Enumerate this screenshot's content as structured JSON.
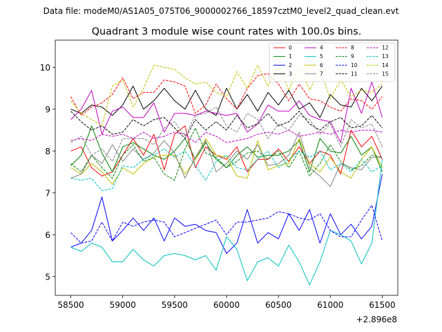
{
  "chart_data": {
    "type": "line",
    "suptitle": "Data file: modeM0/AS1A05_075T06_9000002766_18597cztM0_level2_quad_clean.evt",
    "title": "Quadrant 3 module wise count rates with 100.0s bins.",
    "xlabel": "",
    "ylabel": "",
    "x_offset_label": "+2.896e8",
    "xlim": [
      58350,
      61650
    ],
    "ylim": [
      4.55,
      10.65
    ],
    "xticks": [
      58500,
      59000,
      59500,
      60000,
      60500,
      61000,
      61500
    ],
    "xtick_labels": [
      "58500",
      "59000",
      "59500",
      "60000",
      "60500",
      "61000",
      "61500"
    ],
    "yticks": [
      5,
      6,
      7,
      8,
      9,
      10
    ],
    "ytick_labels": [
      "5",
      "6",
      "7",
      "8",
      "9",
      "10"
    ],
    "grid": false,
    "legend_position": "top-right",
    "x": [
      58500,
      58600,
      58700,
      58800,
      58900,
      59000,
      59100,
      59200,
      59300,
      59400,
      59500,
      59600,
      59700,
      59800,
      59900,
      60000,
      60100,
      60200,
      60300,
      60400,
      60500,
      60600,
      60700,
      60800,
      60900,
      61000,
      61100,
      61200,
      61300,
      61400,
      61500
    ],
    "series": [
      {
        "name": "0",
        "color": "#ff0000",
        "dash": "solid",
        "values": [
          8.0,
          8.1,
          7.6,
          7.4,
          7.5,
          7.9,
          8.3,
          7.9,
          8.4,
          7.55,
          8.4,
          8.6,
          7.6,
          8.1,
          7.9,
          7.8,
          8.1,
          7.5,
          7.8,
          7.8,
          8.05,
          7.75,
          8.1,
          7.7,
          8.0,
          7.9,
          7.45,
          8.5,
          8.1,
          8.35,
          7.8
        ]
      },
      {
        "name": "1",
        "color": "#008000",
        "dash": "solid",
        "values": [
          7.65,
          7.9,
          8.6,
          7.95,
          7.5,
          8.1,
          8.2,
          8.05,
          7.9,
          7.8,
          8.0,
          8.3,
          7.8,
          8.2,
          7.8,
          7.6,
          7.9,
          8.1,
          7.85,
          7.9,
          7.9,
          8.0,
          8.25,
          7.5,
          8.3,
          8.0,
          7.95,
          8.35,
          7.9,
          8.1,
          7.5
        ]
      },
      {
        "name": "2",
        "color": "#0000ff",
        "dash": "solid",
        "values": [
          5.7,
          5.8,
          6.1,
          6.9,
          5.85,
          6.1,
          6.4,
          6.1,
          6.4,
          5.85,
          6.4,
          6.2,
          6.25,
          6.1,
          6.05,
          5.55,
          5.8,
          6.6,
          5.8,
          6.05,
          5.9,
          6.5,
          6.1,
          6.6,
          5.8,
          6.5,
          6.0,
          6.25,
          5.9,
          6.2,
          7.45
        ]
      },
      {
        "name": "3",
        "color": "#000000",
        "dash": "solid",
        "values": [
          9.0,
          8.9,
          9.1,
          9.05,
          8.85,
          9.1,
          9.55,
          9.0,
          9.2,
          9.5,
          9.2,
          9.0,
          9.45,
          9.0,
          8.85,
          9.5,
          9.0,
          9.35,
          8.95,
          9.4,
          9.1,
          9.45,
          9.0,
          9.15,
          8.8,
          9.35,
          9.1,
          9.05,
          9.5,
          9.2,
          9.55
        ]
      },
      {
        "name": "4",
        "color": "#bf00bf",
        "dash": "solid",
        "values": [
          8.75,
          9.0,
          9.45,
          8.4,
          8.95,
          9.05,
          8.8,
          8.8,
          9.15,
          8.45,
          8.9,
          8.9,
          8.85,
          8.95,
          8.9,
          8.85,
          8.9,
          8.45,
          8.65,
          9.1,
          8.95,
          8.95,
          9.2,
          8.85,
          8.75,
          8.7,
          8.2,
          9.5,
          8.9,
          9.65,
          8.8
        ]
      },
      {
        "name": "5",
        "color": "#00bfbf",
        "dash": "solid",
        "values": [
          5.7,
          5.6,
          5.8,
          5.7,
          5.35,
          5.35,
          5.65,
          5.4,
          5.25,
          5.5,
          5.55,
          5.5,
          5.4,
          5.5,
          5.15,
          5.95,
          5.65,
          4.9,
          5.35,
          5.45,
          5.25,
          5.75,
          5.35,
          4.8,
          5.35,
          6.1,
          6.0,
          5.85,
          5.3,
          5.8,
          7.8
        ]
      },
      {
        "name": "6",
        "color": "#bfbf00",
        "dash": "solid",
        "values": [
          7.6,
          7.45,
          7.7,
          7.5,
          7.2,
          7.6,
          7.45,
          7.7,
          7.85,
          7.9,
          7.9,
          7.45,
          7.8,
          8.3,
          7.9,
          7.85,
          7.4,
          7.35,
          8.25,
          7.55,
          7.65,
          7.7,
          8.3,
          7.7,
          7.5,
          7.85,
          7.5,
          7.35,
          7.8,
          8.1,
          7.6
        ]
      },
      {
        "name": "7",
        "color": "#808080",
        "dash": "solid",
        "values": [
          7.35,
          7.45,
          7.9,
          7.7,
          8.15,
          7.75,
          8.05,
          7.8,
          7.95,
          8.25,
          7.95,
          7.35,
          7.85,
          8.25,
          7.5,
          7.7,
          8.0,
          7.8,
          8.15,
          7.65,
          7.7,
          7.9,
          8.45,
          7.6,
          7.4,
          7.15,
          7.7,
          7.6,
          7.55,
          7.85,
          7.85
        ]
      },
      {
        "name": "8",
        "color": "#ff0000",
        "dash": "dashed",
        "values": [
          9.3,
          8.85,
          9.05,
          9.15,
          9.35,
          9.75,
          9.25,
          9.4,
          9.4,
          9.7,
          9.65,
          9.55,
          8.9,
          9.1,
          9.6,
          9.25,
          9.0,
          9.5,
          9.8,
          9.85,
          9.6,
          9.2,
          9.6,
          9.25,
          9.2,
          9.05,
          8.95,
          9.25,
          9.2,
          9.0,
          9.3
        ]
      },
      {
        "name": "9",
        "color": "#008000",
        "dash": "dashed",
        "values": [
          7.7,
          7.5,
          7.9,
          7.6,
          7.35,
          7.9,
          8.15,
          7.75,
          7.85,
          7.45,
          7.3,
          8.05,
          8.55,
          7.95,
          7.85,
          7.6,
          7.75,
          7.95,
          8.0,
          7.8,
          8.0,
          7.6,
          8.0,
          7.4,
          7.7,
          8.15,
          7.75,
          7.55,
          7.65,
          7.9,
          7.85
        ]
      },
      {
        "name": "10",
        "color": "#0000ff",
        "dash": "dashed",
        "values": [
          6.05,
          5.8,
          5.85,
          6.3,
          5.85,
          6.3,
          6.2,
          6.3,
          6.35,
          6.3,
          5.95,
          6.05,
          6.15,
          6.25,
          6.35,
          6.0,
          6.3,
          6.3,
          6.35,
          6.4,
          6.55,
          6.5,
          6.4,
          6.35,
          6.5,
          6.1,
          5.95,
          5.95,
          6.35,
          6.7,
          5.85
        ]
      },
      {
        "name": "11",
        "color": "#000000",
        "dash": "dashed",
        "values": [
          8.95,
          8.7,
          8.5,
          8.6,
          8.4,
          8.45,
          8.75,
          8.6,
          8.75,
          8.8,
          8.55,
          8.3,
          8.75,
          8.5,
          8.7,
          8.5,
          8.85,
          8.55,
          8.65,
          8.9,
          8.6,
          8.7,
          8.95,
          8.65,
          8.5,
          8.7,
          8.8,
          8.55,
          8.6,
          8.85,
          8.55
        ]
      },
      {
        "name": "12",
        "color": "#bf00bf",
        "dash": "dashed",
        "values": [
          8.25,
          8.3,
          8.25,
          8.4,
          8.35,
          8.4,
          8.3,
          8.45,
          8.3,
          8.35,
          8.45,
          8.4,
          8.2,
          8.45,
          8.35,
          8.2,
          8.25,
          8.3,
          8.4,
          8.45,
          8.4,
          8.5,
          8.35,
          8.4,
          8.45,
          8.4,
          8.5,
          8.45,
          8.5,
          8.5,
          8.45
        ]
      },
      {
        "name": "13",
        "color": "#00bfbf",
        "dash": "dashed",
        "values": [
          7.35,
          7.3,
          7.35,
          7.05,
          7.1,
          7.65,
          7.6,
          7.8,
          7.9,
          8.05,
          7.85,
          8.0,
          7.65,
          7.3,
          7.75,
          7.9,
          7.6,
          7.55,
          7.8,
          8.0,
          7.6,
          7.8,
          8.0,
          7.85,
          8.0,
          7.55,
          7.7,
          7.5,
          7.8,
          7.5,
          7.65
        ]
      },
      {
        "name": "14",
        "color": "#bfbf00",
        "dash": "dashed",
        "values": [
          9.2,
          8.9,
          8.75,
          8.6,
          9.55,
          9.7,
          9.05,
          9.5,
          10.05,
          10.0,
          9.95,
          9.75,
          9.6,
          9.65,
          9.4,
          9.3,
          9.9,
          9.5,
          10.05,
          9.55,
          10.05,
          9.45,
          10.05,
          9.45,
          9.95,
          9.25,
          9.7,
          9.3,
          9.45,
          9.4,
          9.6
        ]
      },
      {
        "name": "15",
        "color": "#808080",
        "dash": "dashed",
        "values": [
          8.2,
          8.35,
          7.9,
          8.05,
          7.75,
          8.3,
          8.3,
          8.3,
          8.15,
          8.55,
          8.7,
          8.35,
          8.85,
          8.9,
          9.05,
          8.6,
          8.45,
          8.9,
          8.75,
          8.3,
          8.65,
          8.5,
          8.85,
          8.75,
          8.4,
          8.65,
          8.1,
          8.75,
          8.55,
          8.65,
          8.1
        ]
      }
    ]
  }
}
